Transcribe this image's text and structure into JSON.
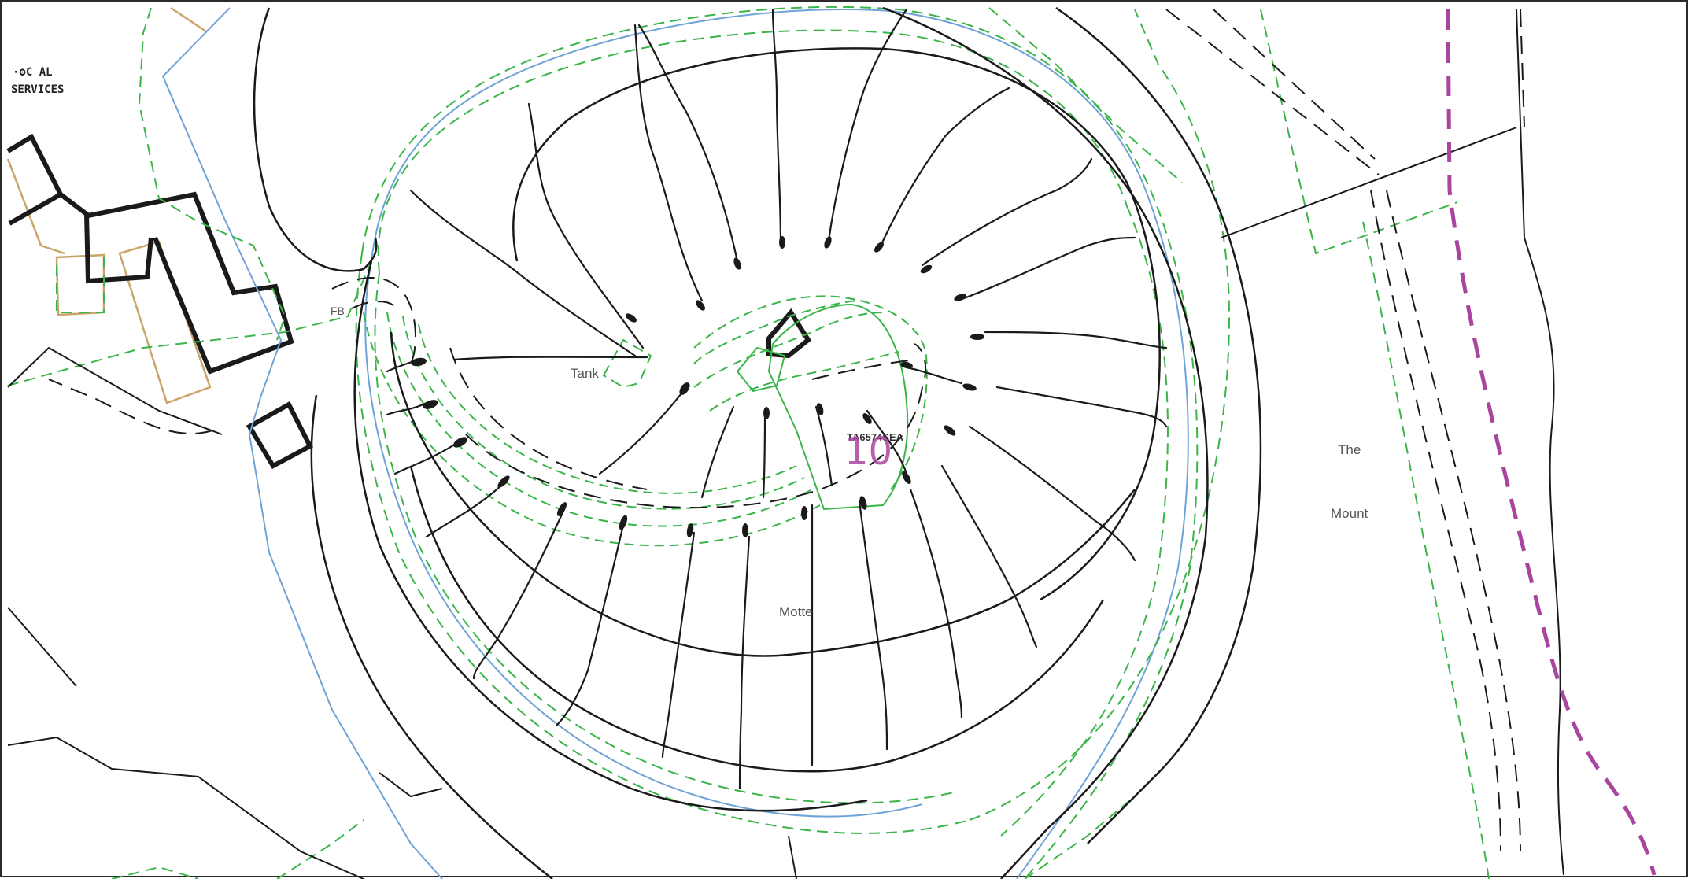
{
  "map": {
    "labels": {
      "local_services_line1": "·ʘC AL",
      "local_services_line2": "SERVICES",
      "fb": "FB",
      "tank": "Tank",
      "os_ref": "TA6574SEA",
      "feature_number": "10",
      "the": "The",
      "mount": "Mount",
      "motte": "Motte"
    },
    "colors": {
      "frame": "#2a2a2a",
      "feature_line": "#1a1a1a",
      "green_boundary": "#3bb54a",
      "blue_water": "#6fa3d6",
      "tan_building": "#c9a56a",
      "magenta_route": "#a9449f",
      "label_number": "#a9449f"
    }
  }
}
